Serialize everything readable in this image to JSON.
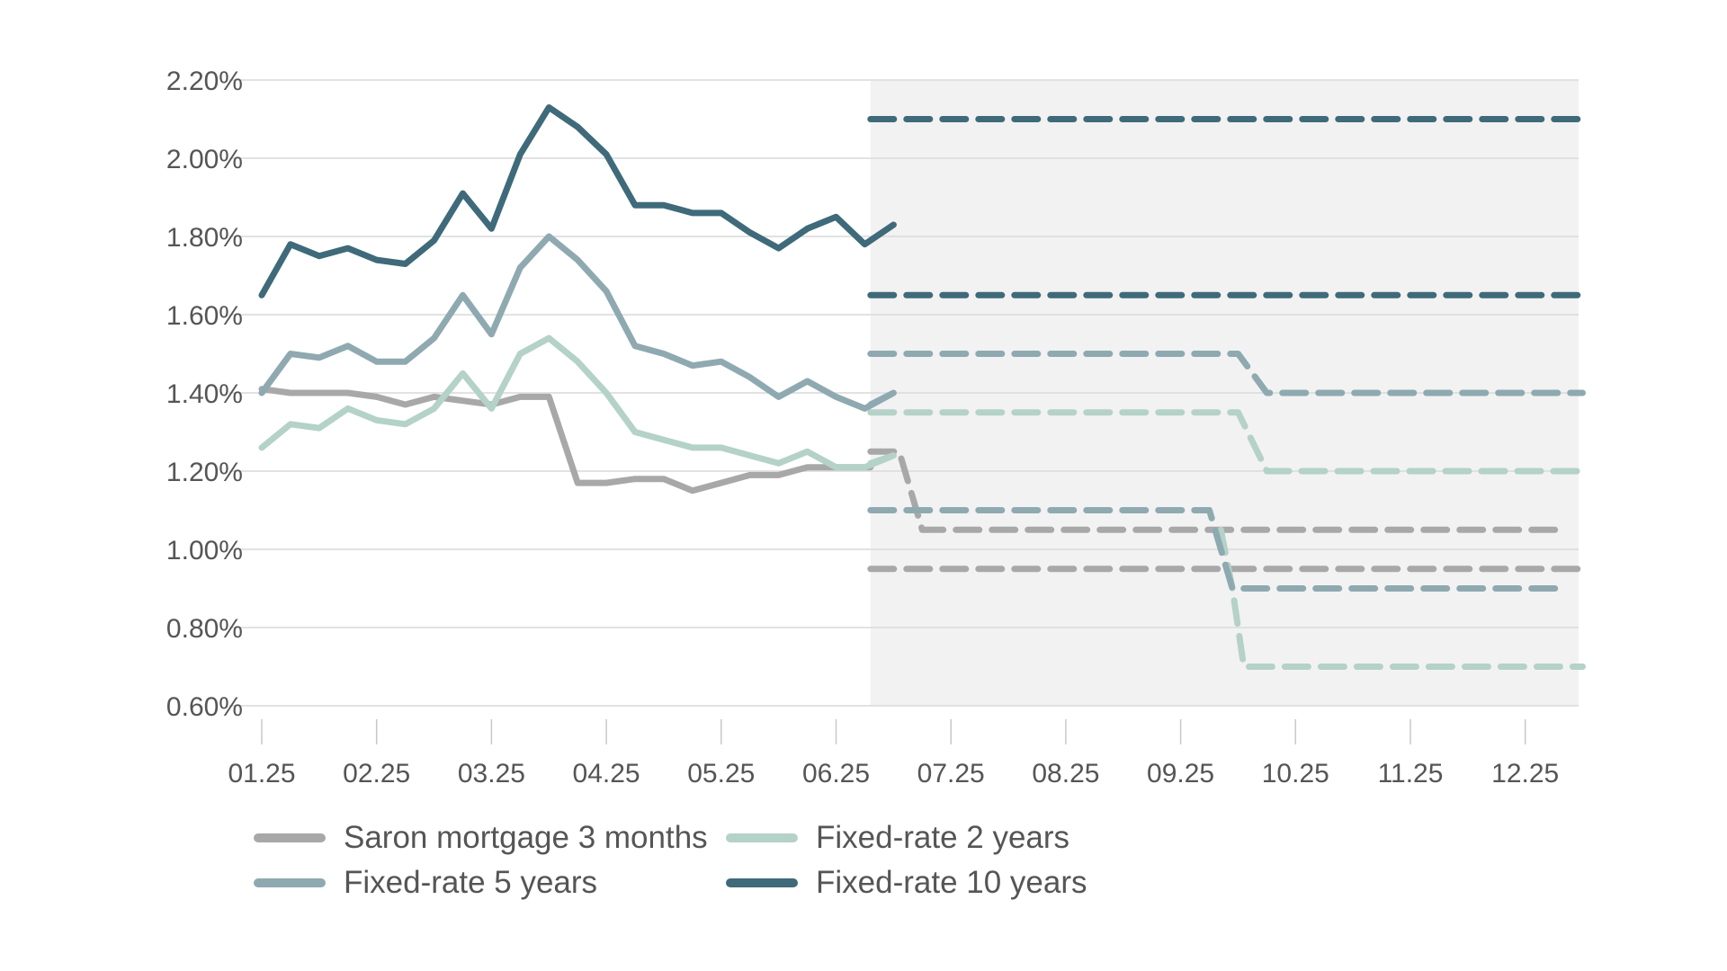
{
  "chart_data": {
    "type": "line",
    "title": "",
    "xlabel": "",
    "ylabel": "",
    "x_ticks": [
      "01.25",
      "02.25",
      "03.25",
      "04.25",
      "05.25",
      "06.25",
      "07.25",
      "08.25",
      "09.25",
      "10.25",
      "11.25",
      "12.25"
    ],
    "y_ticks": [
      "0.60%",
      "0.80%",
      "1.00%",
      "1.20%",
      "1.40%",
      "1.60%",
      "1.80%",
      "2.00%",
      "2.20%"
    ],
    "ylim": [
      0.6,
      2.2
    ],
    "xlim_months": [
      1,
      12.85
    ],
    "grid": "horizontal",
    "forecast_region": {
      "start_month": 6.3,
      "shading": "light-grey"
    },
    "legend_position": "bottom",
    "series": [
      {
        "name": "Saron mortgage 3 months",
        "color": "#a8a8a8",
        "actual": [
          [
            1.0,
            1.41
          ],
          [
            1.25,
            1.4
          ],
          [
            1.5,
            1.4
          ],
          [
            1.75,
            1.4
          ],
          [
            2.0,
            1.39
          ],
          [
            2.25,
            1.37
          ],
          [
            2.5,
            1.39
          ],
          [
            2.75,
            1.38
          ],
          [
            3.0,
            1.37
          ],
          [
            3.25,
            1.39
          ],
          [
            3.5,
            1.39
          ],
          [
            3.75,
            1.17
          ],
          [
            4.0,
            1.17
          ],
          [
            4.25,
            1.18
          ],
          [
            4.5,
            1.18
          ],
          [
            4.75,
            1.15
          ],
          [
            5.0,
            1.17
          ],
          [
            5.25,
            1.19
          ],
          [
            5.5,
            1.19
          ],
          [
            5.75,
            1.21
          ],
          [
            6.0,
            1.21
          ],
          [
            6.25,
            1.21
          ],
          [
            6.3,
            1.21
          ]
        ],
        "forecast": [
          [
            [
              6.3,
              1.25
            ],
            [
              6.55,
              1.25
            ],
            [
              6.75,
              1.05
            ],
            [
              12.35,
              1.05
            ]
          ],
          [
            [
              6.3,
              0.95
            ],
            [
              12.5,
              0.95
            ]
          ]
        ]
      },
      {
        "name": "Fixed-rate 2 years",
        "color": "#b4d2c7",
        "actual": [
          [
            1.0,
            1.26
          ],
          [
            1.25,
            1.32
          ],
          [
            1.5,
            1.31
          ],
          [
            1.75,
            1.36
          ],
          [
            2.0,
            1.33
          ],
          [
            2.25,
            1.32
          ],
          [
            2.5,
            1.36
          ],
          [
            2.75,
            1.45
          ],
          [
            3.0,
            1.36
          ],
          [
            3.25,
            1.5
          ],
          [
            3.5,
            1.54
          ],
          [
            3.75,
            1.48
          ],
          [
            4.0,
            1.4
          ],
          [
            4.25,
            1.3
          ],
          [
            4.5,
            1.28
          ],
          [
            4.75,
            1.26
          ],
          [
            5.0,
            1.26
          ],
          [
            5.25,
            1.24
          ],
          [
            5.5,
            1.22
          ],
          [
            5.75,
            1.25
          ],
          [
            6.0,
            1.21
          ],
          [
            6.25,
            1.21
          ],
          [
            6.5,
            1.24
          ],
          [
            6.3,
            1.22
          ]
        ],
        "forecast": [
          [
            [
              6.3,
              1.35
            ],
            [
              9.5,
              1.35
            ],
            [
              9.75,
              1.2
            ],
            [
              12.5,
              1.2
            ]
          ],
          [
            [
              9.35,
              1.05
            ],
            [
              9.45,
              0.9
            ],
            [
              9.55,
              0.7
            ],
            [
              12.5,
              0.7
            ]
          ]
        ]
      },
      {
        "name": "Fixed-rate 5 years",
        "color": "#8fa9b1",
        "actual": [
          [
            1.0,
            1.4
          ],
          [
            1.25,
            1.5
          ],
          [
            1.5,
            1.49
          ],
          [
            1.75,
            1.52
          ],
          [
            2.0,
            1.48
          ],
          [
            2.25,
            1.48
          ],
          [
            2.5,
            1.54
          ],
          [
            2.75,
            1.65
          ],
          [
            3.0,
            1.55
          ],
          [
            3.25,
            1.72
          ],
          [
            3.5,
            1.8
          ],
          [
            3.75,
            1.74
          ],
          [
            4.0,
            1.66
          ],
          [
            4.25,
            1.52
          ],
          [
            4.5,
            1.5
          ],
          [
            4.75,
            1.47
          ],
          [
            5.0,
            1.48
          ],
          [
            5.25,
            1.44
          ],
          [
            5.5,
            1.39
          ],
          [
            5.75,
            1.43
          ],
          [
            6.0,
            1.39
          ],
          [
            6.25,
            1.36
          ],
          [
            6.5,
            1.4
          ],
          [
            6.3,
            1.37
          ]
        ],
        "forecast": [
          [
            [
              6.3,
              1.5
            ],
            [
              9.5,
              1.5
            ],
            [
              9.75,
              1.4
            ],
            [
              12.5,
              1.4
            ]
          ],
          [
            [
              6.3,
              1.1
            ],
            [
              9.25,
              1.1
            ],
            [
              9.45,
              0.9
            ],
            [
              12.35,
              0.9
            ]
          ]
        ]
      },
      {
        "name": "Fixed-rate 10 years",
        "color": "#3f6a7a",
        "actual": [
          [
            1.0,
            1.65
          ],
          [
            1.25,
            1.78
          ],
          [
            1.5,
            1.75
          ],
          [
            1.75,
            1.77
          ],
          [
            2.0,
            1.74
          ],
          [
            2.25,
            1.73
          ],
          [
            2.5,
            1.79
          ],
          [
            2.75,
            1.91
          ],
          [
            3.0,
            1.82
          ],
          [
            3.25,
            2.01
          ],
          [
            3.5,
            2.13
          ],
          [
            3.75,
            2.08
          ],
          [
            4.0,
            2.01
          ],
          [
            4.25,
            1.88
          ],
          [
            4.5,
            1.88
          ],
          [
            4.75,
            1.86
          ],
          [
            5.0,
            1.86
          ],
          [
            5.25,
            1.81
          ],
          [
            5.5,
            1.77
          ],
          [
            5.75,
            1.82
          ],
          [
            6.0,
            1.85
          ],
          [
            6.25,
            1.78
          ],
          [
            6.5,
            1.83
          ],
          [
            6.3,
            1.79
          ]
        ],
        "forecast": [
          [
            [
              6.3,
              2.1
            ],
            [
              12.5,
              2.1
            ]
          ],
          [
            [
              6.3,
              1.65
            ],
            [
              12.5,
              1.65
            ]
          ]
        ]
      }
    ],
    "legend_order": [
      "Saron mortgage 3 months",
      "Fixed-rate 2 years",
      "Fixed-rate 5 years",
      "Fixed-rate 10 years"
    ]
  }
}
